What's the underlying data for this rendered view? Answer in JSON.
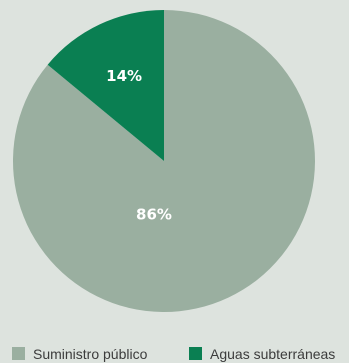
{
  "chart_data": {
    "type": "pie",
    "slices": [
      {
        "label": "Suministro público",
        "value": 86,
        "value_label": "86%",
        "color": "#9aafa0"
      },
      {
        "label": "Aguas subterráneas",
        "value": 14,
        "value_label": "14%",
        "color": "#0a7f52"
      }
    ],
    "start": "12 o'clock",
    "direction": "clockwise",
    "legend_position": "bottom"
  },
  "legend": {
    "items": [
      {
        "label": "Suministro público",
        "color": "#9aafa0"
      },
      {
        "label": "Aguas subterráneas",
        "color": "#0a7f52"
      }
    ]
  }
}
